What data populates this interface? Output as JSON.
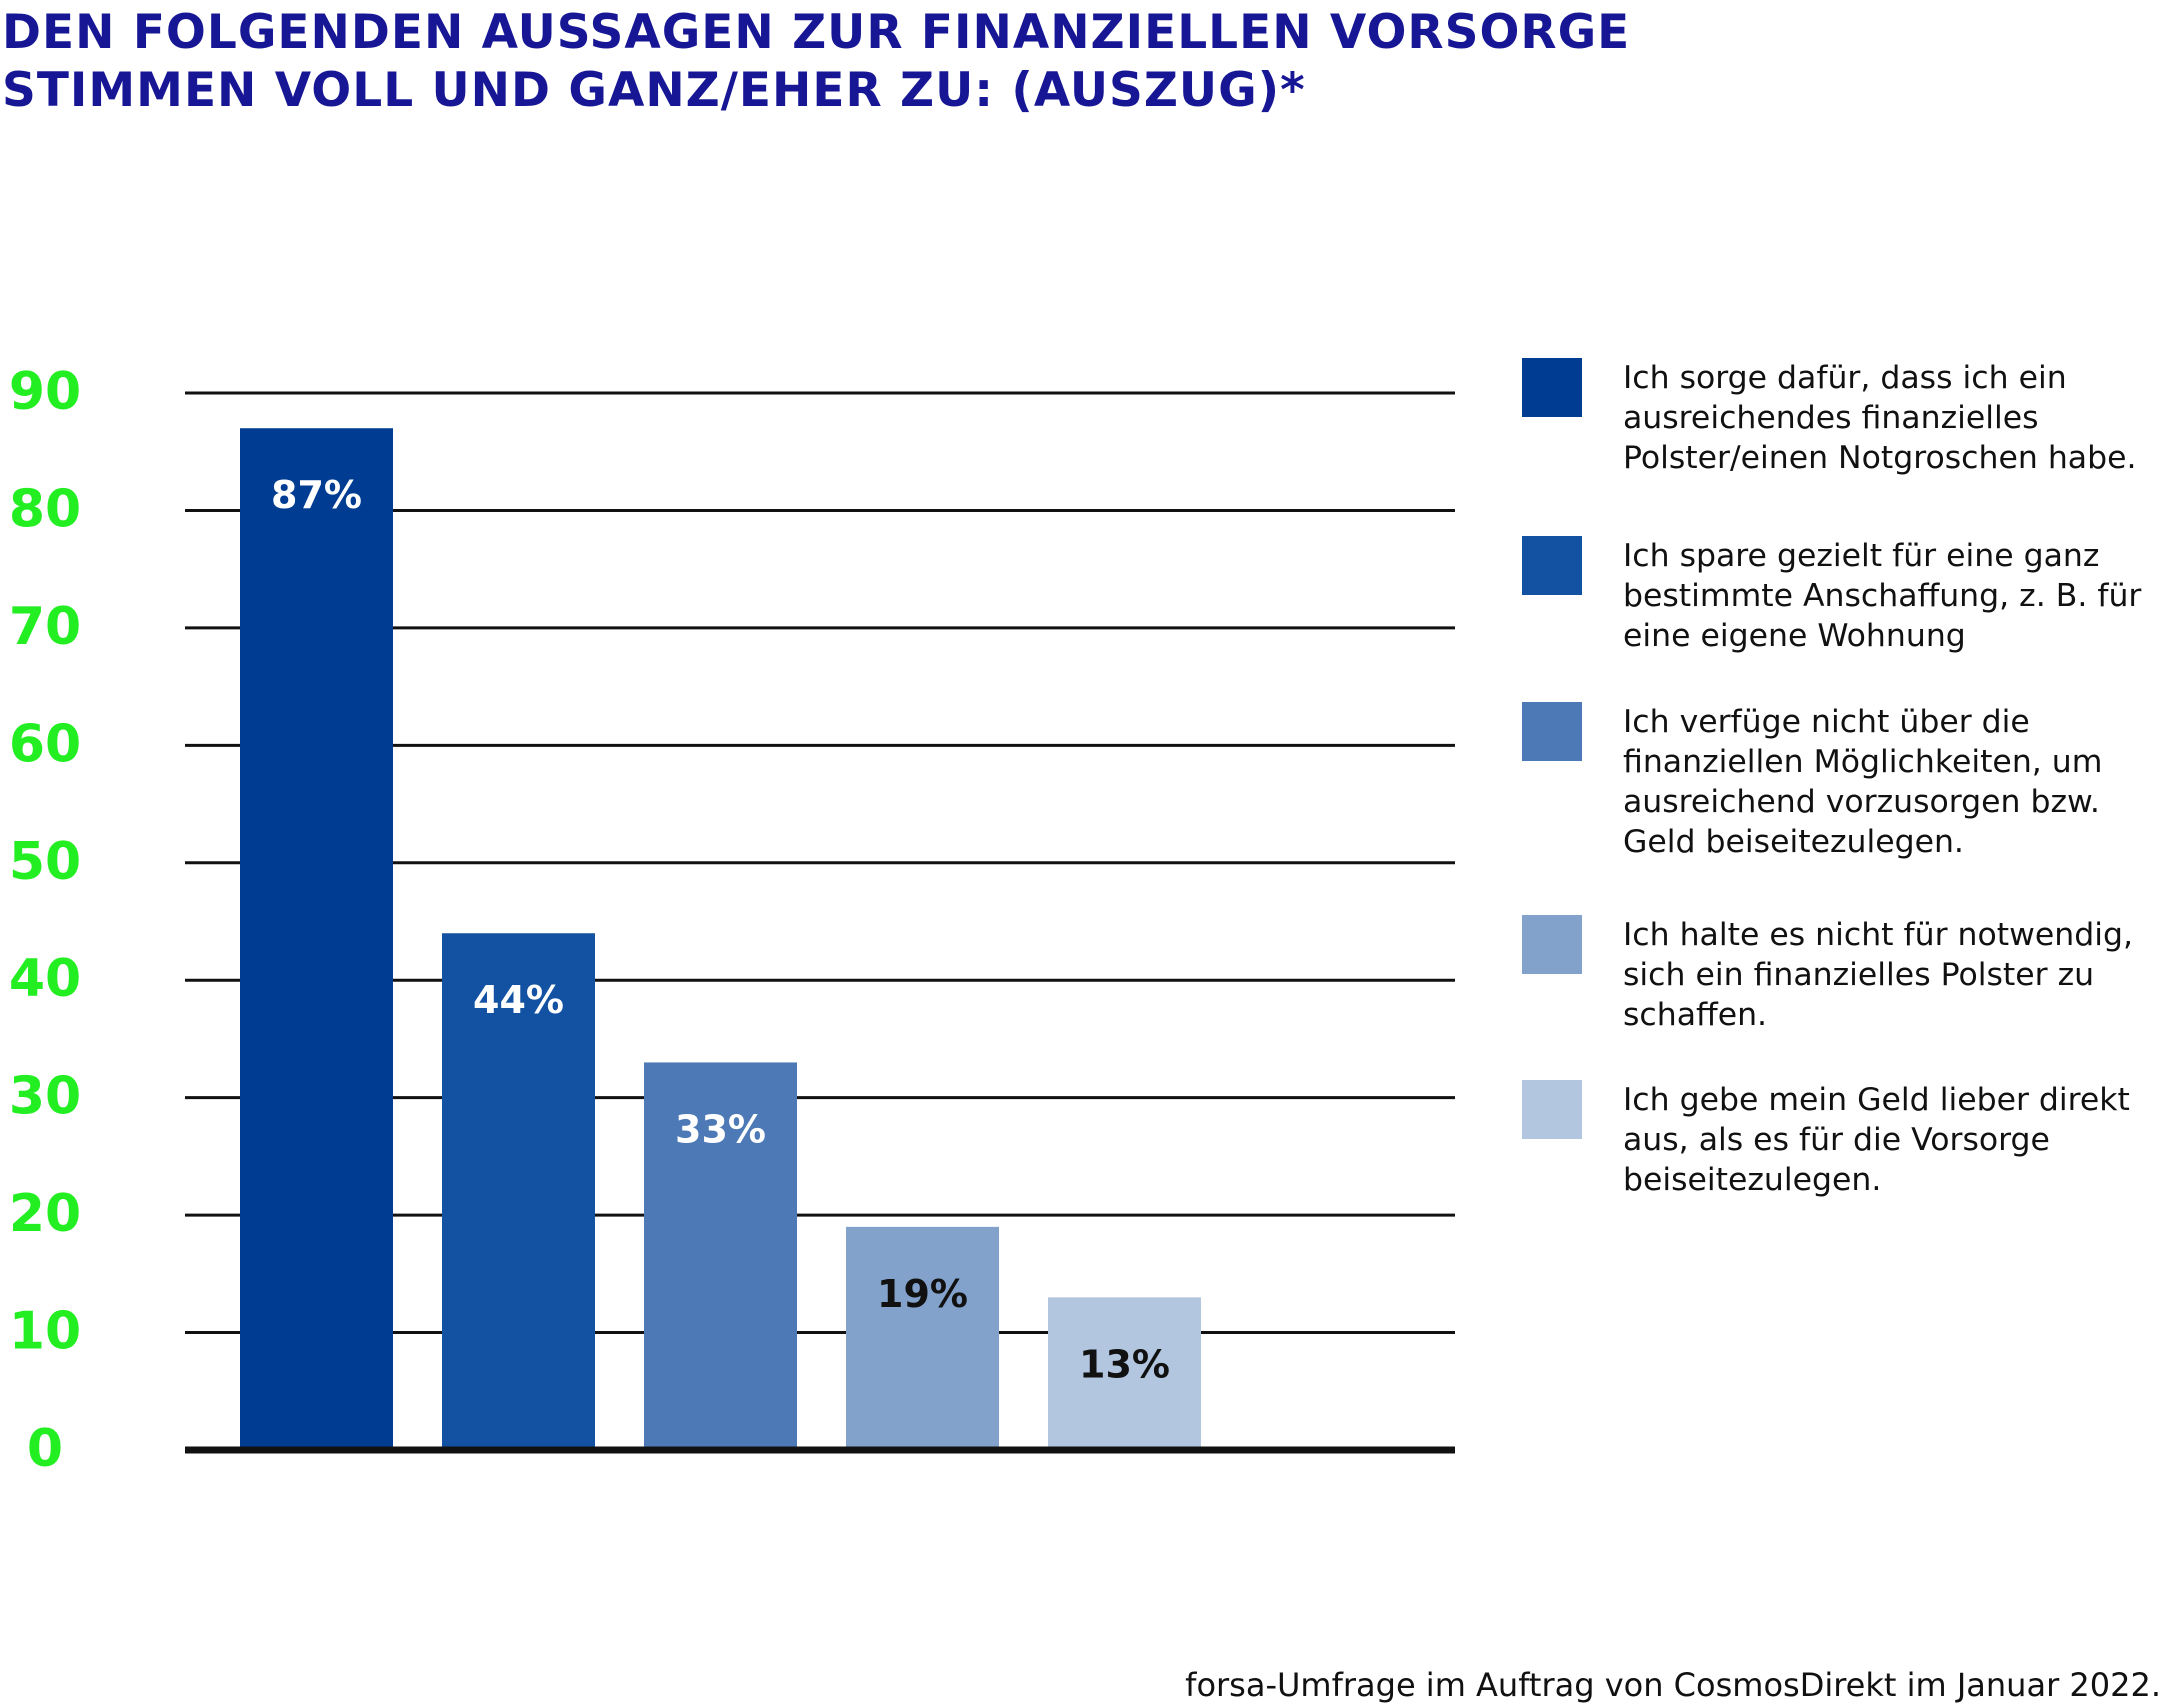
{
  "header": {
    "title_line1": "DEN FOLGENDEN AUSSAGEN ZUR FINANZIELLEN VORSORGE",
    "title_line2": "STIMMEN VOLL UND GANZ/EHER ZU: (AUSZUG)*"
  },
  "colors": {
    "title": "#171796",
    "axis_ticks": "#22ee22",
    "gridline": "#111111",
    "label_light": "#ffffff",
    "label_dark": "#111111"
  },
  "chart_data": {
    "type": "bar",
    "title": "DEN FOLGENDEN AUSSAGEN ZUR FINANZIELLEN VORSORGE STIMMEN VOLL UND GANZ/EHER ZU: (AUSZUG)*",
    "ylim": [
      0,
      90
    ],
    "yticks": [
      0,
      10,
      20,
      30,
      40,
      50,
      60,
      70,
      80,
      90
    ],
    "grid": true,
    "legend_position": "right",
    "categories": [
      "Ich sorge dafür, dass ich ein ausreichendes finanzielles Polster/einen Notgroschen habe.",
      "Ich spare gezielt für eine ganz bestimmte Anschaffung, z. B. für eine eigene Wohnung",
      "Ich verfüge nicht über die finanziellen Möglichkeiten, um ausreichend vorzusorgen bzw. Geld beiseitezulegen.",
      "Ich halte es nicht für notwendig, sich ein finanzielles Polster zu schaffen.",
      "Ich gebe mein Geld lieber direkt aus, als es für die Vorsorge beiseitezulegen."
    ],
    "values": [
      87,
      44,
      33,
      19,
      13
    ],
    "data_labels": [
      "87%",
      "44%",
      "33%",
      "19%",
      "13%"
    ],
    "bar_colors": [
      "#003d92",
      "#1352a2",
      "#4d7ab6",
      "#82a1cb",
      "#b3c6e0"
    ]
  },
  "legend": {
    "items": [
      {
        "lines": [
          "Ich sorge dafür, dass ich ein",
          "ausreichendes finanzielles",
          "Polster/einen Notgroschen habe."
        ],
        "color": "#003d92"
      },
      {
        "lines": [
          "Ich spare gezielt für eine ganz",
          "bestimmte Anschaffung, z. B. für",
          "eine eigene Wohnung"
        ],
        "color": "#1352a2"
      },
      {
        "lines": [
          "Ich verfüge nicht über die",
          "finanziellen Möglichkeiten, um",
          "ausreichend vorzusorgen bzw.",
          "Geld beiseitezulegen."
        ],
        "color": "#4d7ab6"
      },
      {
        "lines": [
          "Ich halte es nicht für notwendig,",
          "sich ein finanzielles Polster zu",
          "schaffen."
        ],
        "color": "#82a1cb"
      },
      {
        "lines": [
          "Ich gebe mein Geld lieber direkt",
          "aus, als es für die Vorsorge",
          "beiseitezulegen."
        ],
        "color": "#b3c6e0"
      }
    ]
  },
  "footer": {
    "source": "forsa-Umfrage im Auftrag von CosmosDirekt im Januar 2022."
  }
}
